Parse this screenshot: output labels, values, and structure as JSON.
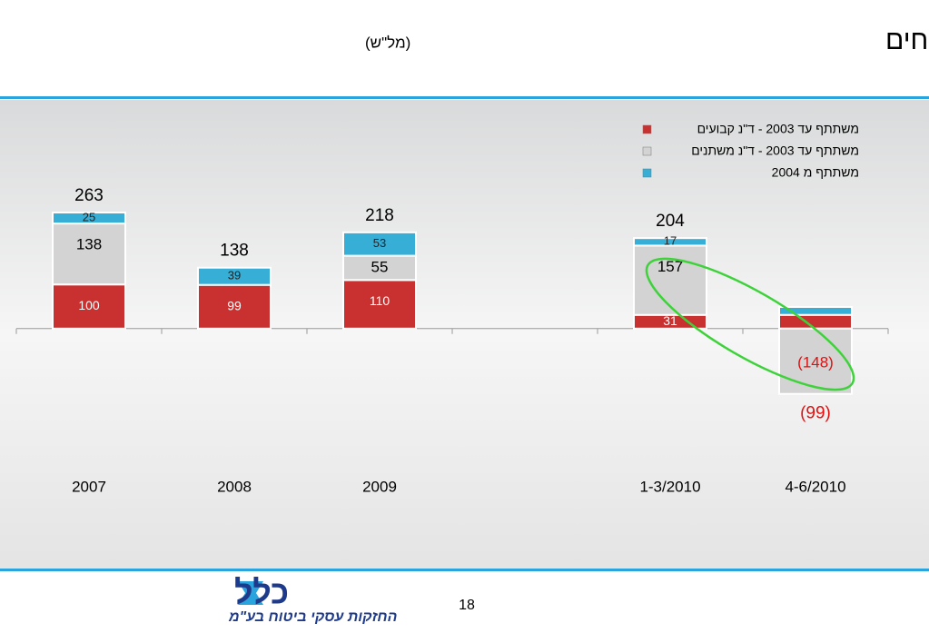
{
  "chart_data": {
    "type": "stacked_bar",
    "title": "דמי ניהול בפוליסות המשתתפות ברווחים",
    "subtitle": "(מל\"ש)",
    "categories": [
      "2007",
      "2008",
      "2009",
      null,
      "1-3/2010",
      "4-6/2010"
    ],
    "ylim": [
      -200,
      300
    ],
    "series": [
      {
        "name": "משתתף עד 2003 - ד\"נ קבועים",
        "color": "#c8312f",
        "values": [
          100,
          99,
          110,
          null,
          31,
          31
        ],
        "value_labels": [
          "100",
          "99",
          "110",
          null,
          "31",
          null
        ]
      },
      {
        "name": "משתתף עד 2003 - ד\"נ משתנים",
        "color": "#d3d3d3",
        "values": [
          138,
          null,
          55,
          null,
          157,
          -148
        ],
        "value_labels": [
          "138",
          null,
          "55",
          null,
          "157",
          "(148)"
        ]
      },
      {
        "name": "משתתף מ 2004",
        "color": "#36aed6",
        "values": [
          25,
          39,
          53,
          null,
          17,
          18
        ],
        "value_labels": [
          "25",
          "39",
          "53",
          null,
          "17",
          null
        ]
      }
    ],
    "totals": [
      263,
      138,
      218,
      null,
      204,
      -99
    ],
    "total_labels": [
      "263",
      "138",
      "218",
      null,
      "204",
      "(99)"
    ]
  },
  "page_number": "18",
  "logo": {
    "name": "כלל",
    "tagline": "החזקות עסקי ביטוח בע\"מ"
  }
}
